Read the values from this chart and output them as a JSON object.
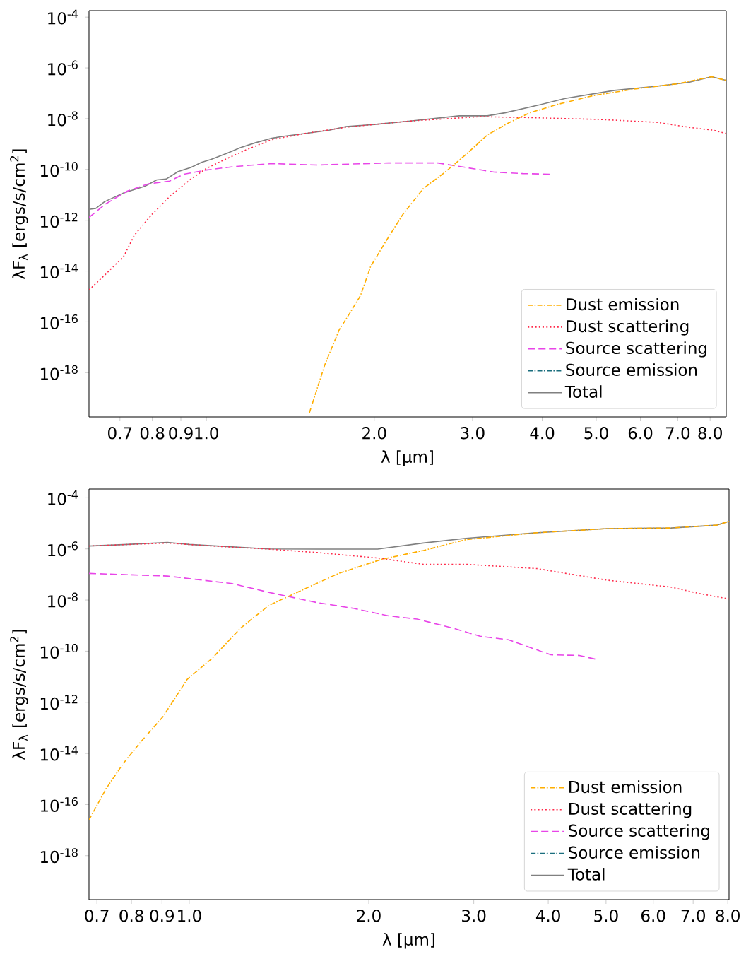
{
  "chart_data": [
    {
      "type": "line",
      "xlabel": "λ [μm]",
      "ylabel": "λF$_{λ}$ [ergs/s/cm$^{2}$]",
      "log": "xy",
      "legend": "bottom right",
      "xlim": [
        0.616,
        8.55
      ],
      "ylim": [
        1.8e-20,
        0.00018
      ],
      "xticks": [
        0.7,
        0.8,
        0.9,
        {
          "value": 1,
          "label": "1.0"
        },
        {
          "value": 2,
          "label": "2.0"
        },
        {
          "value": 3,
          "label": "3.0"
        },
        {
          "value": 4,
          "label": "4.0"
        },
        {
          "value": 5,
          "label": "5.0"
        },
        {
          "value": 6,
          "label": "6.0"
        },
        {
          "value": 7,
          "label": "7.0"
        },
        {
          "value": 8,
          "label": "8.0"
        }
      ],
      "yticks": [
        {
          "value": 1e-18,
          "label": "10$^{-18}$"
        },
        {
          "value": 1e-16,
          "label": "10$^{-16}$"
        },
        {
          "value": 1e-14,
          "label": "10$^{-14}$"
        },
        {
          "value": 1e-12,
          "label": "10$^{-12}$"
        },
        {
          "value": 1e-10,
          "label": "10$^{-10}$"
        },
        {
          "value": 1e-08,
          "label": "10$^{-8}$"
        },
        {
          "value": 1e-06,
          "label": "10$^{-6}$"
        },
        {
          "value": 0.0001,
          "label": "10$^{-4}$"
        }
      ],
      "series": [
        {
          "name": "Dust emission",
          "color": "#ffae00",
          "line_style": "dashdot",
          "x": [
            1.53,
            1.63,
            1.73,
            1.81,
            1.89,
            1.97,
            2.09,
            2.25,
            2.45,
            2.68,
            2.92,
            3.19,
            3.48,
            3.8,
            4.27,
            4.94,
            5.89,
            7.01,
            8.05,
            8.55
          ],
          "values": [
            2.6e-20,
            2e-18,
            4.8e-17,
            2.3e-16,
            1.1e-15,
            1.5e-14,
            1.3e-13,
            1.7e-12,
            1.8e-11,
            7.9e-11,
            3.9e-10,
            2.3e-09,
            6.8e-09,
            1.7e-08,
            3.7e-08,
            8.1e-08,
            1.5e-07,
            2.4e-07,
            4.5e-07,
            3.2e-07
          ]
        },
        {
          "name": "Dust scattering",
          "color": "#ff2a4a",
          "line_style": "dotted",
          "x": [
            0.616,
            0.661,
            0.711,
            0.743,
            0.799,
            0.859,
            0.938,
            1.0,
            1.085,
            1.18,
            1.31,
            1.5,
            1.78,
            2.32,
            3.1,
            3.8,
            5.09,
            6.42,
            7.43,
            8.12,
            8.55
          ],
          "values": [
            1.8e-15,
            7.8e-15,
            3.8e-14,
            2.6e-13,
            1.7e-12,
            8.5e-12,
            4.2e-11,
            1.1e-10,
            2.6e-10,
            6e-10,
            1.5e-09,
            2.6e-09,
            4.6e-09,
            8.1e-09,
            1.2e-08,
            1.1e-08,
            9.3e-09,
            7.2e-09,
            4.4e-09,
            3.5e-09,
            2.6e-09
          ]
        },
        {
          "name": "Source scattering",
          "color": "#e845e8",
          "line_style": "dashed",
          "x": [
            0.616,
            0.661,
            0.721,
            0.787,
            0.859,
            0.911,
            1.0,
            1.12,
            1.31,
            1.58,
            2.12,
            2.6,
            2.92,
            3.28,
            3.69,
            4.17
          ],
          "values": [
            1.3e-12,
            4.5e-12,
            1.4e-11,
            2.7e-11,
            3.5e-11,
            6.5e-11,
            9.5e-11,
            1.3e-10,
            1.7e-10,
            1.5e-10,
            1.8e-10,
            1.8e-10,
            1.2e-10,
            7.9e-11,
            6.9e-11,
            6.5e-11
          ]
        },
        {
          "name": "Source emission",
          "color": "#1a6e7e",
          "line_style": "dashdot"
        },
        {
          "name": "Total",
          "color": "#808080",
          "line_style": "solid",
          "x": [
            0.616,
            0.633,
            0.657,
            0.711,
            0.776,
            0.815,
            0.847,
            0.89,
            0.938,
            0.98,
            1.02,
            1.09,
            1.15,
            1.22,
            1.31,
            1.37,
            1.5,
            1.66,
            1.78,
            2.0,
            2.32,
            2.84,
            3.19,
            3.43,
            3.91,
            4.4,
            5.39,
            6.42,
            7.33,
            8.05,
            8.55
          ],
          "values": [
            2.7e-12,
            2.9e-12,
            5.4e-12,
            1.2e-11,
            2.2e-11,
            3.9e-11,
            4.2e-11,
            8.3e-11,
            1.2e-10,
            1.9e-10,
            2.5e-10,
            4.4e-10,
            7.2e-10,
            1.1e-09,
            1.7e-09,
            2e-09,
            2.6e-09,
            3.5e-09,
            4.9e-09,
            5.9e-09,
            8.1e-09,
            1.3e-08,
            1.3e-08,
            1.7e-08,
            3.3e-08,
            6.3e-08,
            1.3e-07,
            1.9e-07,
            2.7e-07,
            4.5e-07,
            3.2e-07
          ]
        }
      ]
    },
    {
      "type": "line",
      "xlabel": "λ [μm]",
      "ylabel": "λF$_{λ}$ [ergs/s/cm$^{2}$]",
      "log": "xy",
      "legend": "bottom right",
      "xlim": [
        0.679,
        8.04
      ],
      "ylim": [
        1.9e-20,
        0.00022
      ],
      "xticks": [
        0.7,
        0.8,
        0.9,
        {
          "value": 1,
          "label": "1.0"
        },
        {
          "value": 2,
          "label": "2.0"
        },
        {
          "value": 3,
          "label": "3.0"
        },
        {
          "value": 4,
          "label": "4.0"
        },
        {
          "value": 5,
          "label": "5.0"
        },
        {
          "value": 6,
          "label": "6.0"
        },
        {
          "value": 7,
          "label": "7.0"
        },
        {
          "value": 8,
          "label": "8.0"
        }
      ],
      "yticks": [
        {
          "value": 1e-18,
          "label": "10$^{-18}$"
        },
        {
          "value": 1e-16,
          "label": "10$^{-16}$"
        },
        {
          "value": 1e-14,
          "label": "10$^{-14}$"
        },
        {
          "value": 1e-12,
          "label": "10$^{-12}$"
        },
        {
          "value": 1e-10,
          "label": "10$^{-10}$"
        },
        {
          "value": 1e-08,
          "label": "10$^{-8}$"
        },
        {
          "value": 1e-06,
          "label": "10$^{-6}$"
        },
        {
          "value": 0.0001,
          "label": "10$^{-4}$"
        }
      ],
      "series": [
        {
          "name": "Dust emission",
          "color": "#ffae00",
          "line_style": "dashdot",
          "x": [
            0.679,
            0.725,
            0.776,
            0.831,
            0.902,
            0.992,
            1.09,
            1.22,
            1.36,
            1.56,
            1.78,
            2.1,
            2.47,
            2.91,
            3.83,
            5.02,
            6.43,
            7.67,
            8.04
          ],
          "values": [
            2.5e-17,
            4.1e-16,
            4.2e-15,
            3e-14,
            2.6e-13,
            7.9e-12,
            5e-11,
            8.1e-10,
            6.2e-09,
            2.7e-08,
            1.1e-07,
            3.9e-07,
            8.7e-07,
            2.3e-06,
            4.3e-06,
            6.2e-06,
            6.6e-06,
            8.5e-06,
            1.2e-05
          ]
        },
        {
          "name": "Dust scattering",
          "color": "#ff2a4a",
          "line_style": "dotted",
          "x": [
            0.679,
            0.919,
            1.09,
            1.36,
            1.64,
            2.07,
            2.47,
            2.91,
            3.83,
            5.02,
            6.43,
            7.17,
            8.04
          ],
          "values": [
            1.3e-06,
            1.7e-06,
            1.3e-06,
            9.8e-07,
            7.2e-07,
            4.4e-07,
            2.5e-07,
            2.5e-07,
            1.7e-07,
            6e-08,
            3.2e-08,
            1.8e-08,
            1.1e-08
          ]
        },
        {
          "name": "Source scattering",
          "color": "#e845e8",
          "line_style": "dashed",
          "x": [
            0.679,
            0.919,
            1.18,
            1.36,
            1.64,
            1.88,
            2.16,
            2.41,
            2.76,
            3.08,
            3.43,
            4.04,
            4.51,
            4.83
          ],
          "values": [
            1.1e-07,
            8.7e-08,
            4.4e-08,
            2e-08,
            7.9e-09,
            4.8e-09,
            2.4e-09,
            1.8e-09,
            8.1e-10,
            3.8e-10,
            2.8e-10,
            7.2e-11,
            6.8e-11,
            4.7e-11
          ]
        },
        {
          "name": "Source emission",
          "color": "#1a6e7e",
          "line_style": "dashdot"
        },
        {
          "name": "Total",
          "color": "#808080",
          "line_style": "solid",
          "x": [
            0.679,
            0.787,
            0.919,
            1.0,
            1.36,
            1.64,
            2.07,
            2.47,
            2.91,
            3.83,
            5.02,
            6.43,
            7.67,
            8.04
          ],
          "values": [
            1.3e-06,
            1.5e-06,
            1.8e-06,
            1.5e-06,
            1e-06,
            9.8e-07,
            9.8e-07,
            1.7e-06,
            2.6e-06,
            4.3e-06,
            6.2e-06,
            6.6e-06,
            8.5e-06,
            1.2e-05
          ]
        }
      ]
    }
  ]
}
